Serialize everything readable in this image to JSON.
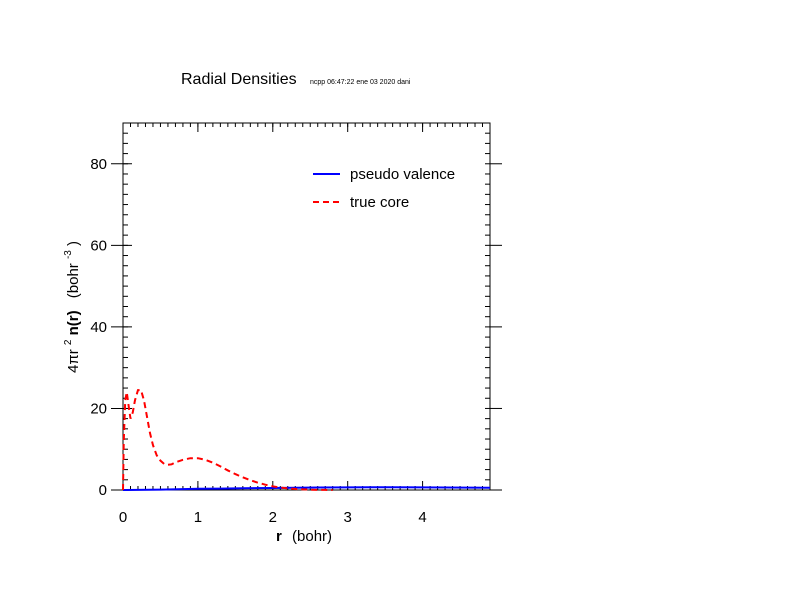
{
  "chart_data": {
    "type": "line",
    "title": "Radial Densities",
    "subtitle": "ncpp 06:47:22 ene 03 2020 dani",
    "xlabel": {
      "bold": "r",
      "rest": "(bohr)"
    },
    "ylabel": {
      "pre": "4πr",
      "sup1": "2",
      "bold": "n(r)",
      "post": "(bohr",
      "sup2": "-3",
      "close": ")"
    },
    "xlim": [
      0,
      4.9
    ],
    "ylim": [
      0,
      90
    ],
    "xticks": [
      0,
      1,
      2,
      3,
      4
    ],
    "yticks": [
      0,
      20,
      40,
      60,
      80
    ],
    "grid": false,
    "legend_position": "top-right",
    "series": [
      {
        "name": "pseudo valence",
        "color": "#0000ff",
        "style": "solid",
        "x": [
          0,
          0.2,
          0.5,
          0.8,
          1.0,
          1.3,
          1.6,
          2.0,
          2.3,
          2.6,
          3.0,
          3.3,
          3.6,
          4.0,
          4.3,
          4.6,
          4.9
        ],
        "y": [
          0,
          0.02,
          0.1,
          0.2,
          0.3,
          0.35,
          0.42,
          0.5,
          0.55,
          0.6,
          0.65,
          0.66,
          0.67,
          0.65,
          0.62,
          0.58,
          0.55
        ]
      },
      {
        "name": "true core",
        "color": "#ff0000",
        "style": "dashed",
        "x": [
          0,
          0.01,
          0.03,
          0.05,
          0.08,
          0.1,
          0.13,
          0.16,
          0.2,
          0.24,
          0.28,
          0.32,
          0.36,
          0.4,
          0.45,
          0.5,
          0.55,
          0.6,
          0.65,
          0.7,
          0.8,
          0.9,
          1.0,
          1.1,
          1.2,
          1.3,
          1.4,
          1.5,
          1.6,
          1.7,
          1.8,
          1.9,
          2.0,
          2.1,
          2.2,
          2.3,
          2.4,
          2.5,
          2.6,
          2.7,
          2.8
        ],
        "y": [
          0,
          12,
          22,
          24,
          20,
          17.5,
          19,
          22,
          24.5,
          24.5,
          22,
          18,
          14,
          11,
          8.5,
          7.2,
          6.4,
          6.2,
          6.3,
          6.8,
          7.4,
          7.8,
          7.8,
          7.4,
          6.7,
          5.8,
          4.8,
          3.9,
          3.1,
          2.4,
          1.8,
          1.3,
          0.9,
          0.6,
          0.4,
          0.25,
          0.15,
          0.08,
          0.04,
          0.02,
          0
        ]
      }
    ]
  }
}
